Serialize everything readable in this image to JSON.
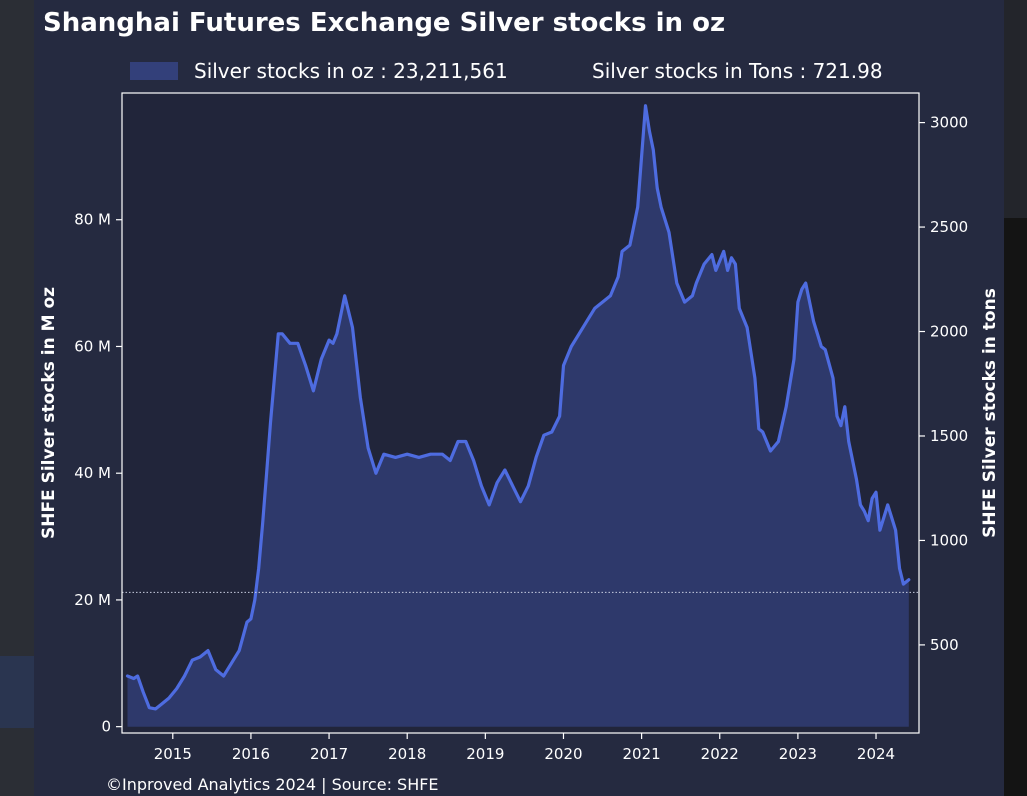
{
  "chart_data": {
    "type": "area",
    "title": "Shanghai Futures Exchange Silver stocks in oz",
    "legend": {
      "placement": "top",
      "entries": [
        {
          "label": "Silver stocks in oz : 23,211,561",
          "swatch": true
        },
        {
          "label": "Silver stocks in Tons : 721.98",
          "swatch": false
        }
      ]
    },
    "ylabel_left": "SHFE Silver stocks in M oz",
    "ylabel_right": "SHFE Silver stocks in tons",
    "x_ticks": [
      "2015",
      "2016",
      "2017",
      "2018",
      "2019",
      "2020",
      "2021",
      "2022",
      "2023",
      "2024"
    ],
    "y_left_ticks": [
      "0",
      "20 M",
      "40 M",
      "60 M",
      "80 M"
    ],
    "y_right_ticks": [
      "500",
      "1000",
      "1500",
      "2000",
      "2500",
      "3000"
    ],
    "y_left_range": [
      -1,
      100
    ],
    "y_right_range": [
      78.4,
      3141.6
    ],
    "x_range": [
      2014.35,
      2024.55
    ],
    "grid": false,
    "reference_line": {
      "value_oz_m": 21.2,
      "style": "dotted"
    },
    "series": [
      {
        "name": "Silver stocks in oz",
        "unit": "M oz",
        "x": [
          2014.42,
          2014.5,
          2014.55,
          2014.62,
          2014.7,
          2014.78,
          2014.85,
          2014.95,
          2015.05,
          2015.15,
          2015.25,
          2015.35,
          2015.45,
          2015.55,
          2015.65,
          2015.75,
          2015.85,
          2015.95,
          2016.0,
          2016.05,
          2016.1,
          2016.15,
          2016.2,
          2016.25,
          2016.3,
          2016.35,
          2016.4,
          2016.5,
          2016.6,
          2016.7,
          2016.75,
          2016.8,
          2016.9,
          2017.0,
          2017.05,
          2017.1,
          2017.15,
          2017.2,
          2017.3,
          2017.4,
          2017.5,
          2017.6,
          2017.7,
          2017.85,
          2018.0,
          2018.15,
          2018.3,
          2018.45,
          2018.55,
          2018.65,
          2018.75,
          2018.85,
          2018.95,
          2019.05,
          2019.15,
          2019.25,
          2019.35,
          2019.45,
          2019.55,
          2019.65,
          2019.75,
          2019.85,
          2019.95,
          2020.0,
          2020.1,
          2020.2,
          2020.3,
          2020.4,
          2020.5,
          2020.6,
          2020.7,
          2020.75,
          2020.85,
          2020.95,
          2021.0,
          2021.05,
          2021.1,
          2021.15,
          2021.2,
          2021.25,
          2021.35,
          2021.45,
          2021.55,
          2021.65,
          2021.7,
          2021.8,
          2021.9,
          2021.95,
          2022.05,
          2022.1,
          2022.15,
          2022.2,
          2022.25,
          2022.35,
          2022.45,
          2022.5,
          2022.55,
          2022.65,
          2022.75,
          2022.85,
          2022.95,
          2023.0,
          2023.05,
          2023.1,
          2023.15,
          2023.2,
          2023.3,
          2023.35,
          2023.45,
          2023.5,
          2023.55,
          2023.6,
          2023.65,
          2023.7,
          2023.75,
          2023.8,
          2023.85,
          2023.9,
          2023.95,
          2024.0,
          2024.05,
          2024.1,
          2024.15,
          2024.2,
          2024.25,
          2024.3,
          2024.35,
          2024.42
        ],
        "values": [
          8,
          7.6,
          8,
          5.5,
          3,
          2.8,
          3.5,
          4.5,
          6,
          8,
          10.5,
          11,
          12,
          9,
          8,
          10,
          12,
          16.5,
          17,
          20,
          25,
          32,
          40,
          48,
          55,
          62,
          62,
          60.5,
          60.5,
          57,
          55,
          53,
          58,
          61,
          60.5,
          62,
          65,
          68,
          63,
          52,
          44,
          40,
          43,
          42.5,
          43,
          42.5,
          43,
          43,
          42,
          45,
          45,
          42,
          38,
          35,
          38.5,
          40.5,
          38,
          35.5,
          38,
          42.5,
          46,
          46.5,
          49,
          57,
          60,
          62,
          64,
          66,
          67,
          68,
          71,
          75,
          76,
          82,
          90,
          98,
          94,
          91,
          85,
          82,
          78,
          70,
          67,
          68,
          70,
          73,
          74.5,
          72,
          75,
          72,
          74,
          73,
          66,
          63,
          55,
          47,
          46.5,
          43.5,
          45,
          50.5,
          58,
          67,
          69,
          70,
          67,
          64,
          60,
          59.5,
          55,
          49,
          47.5,
          50.5,
          45,
          42,
          39,
          35,
          34,
          32.5,
          36,
          37,
          31,
          33,
          35,
          33,
          31,
          25,
          22.5,
          23.2
        ]
      }
    ]
  },
  "footer": {
    "credit": "©Inproved Analytics 2024 | Source: SHFE"
  },
  "colors": {
    "background": "#252a40",
    "plot_background": "#21253a",
    "area_fill": "#2f3a6e",
    "line": "#4e6ce0",
    "swatch": "#33407a",
    "text": "#ffffff",
    "axis": "#ffffff"
  }
}
